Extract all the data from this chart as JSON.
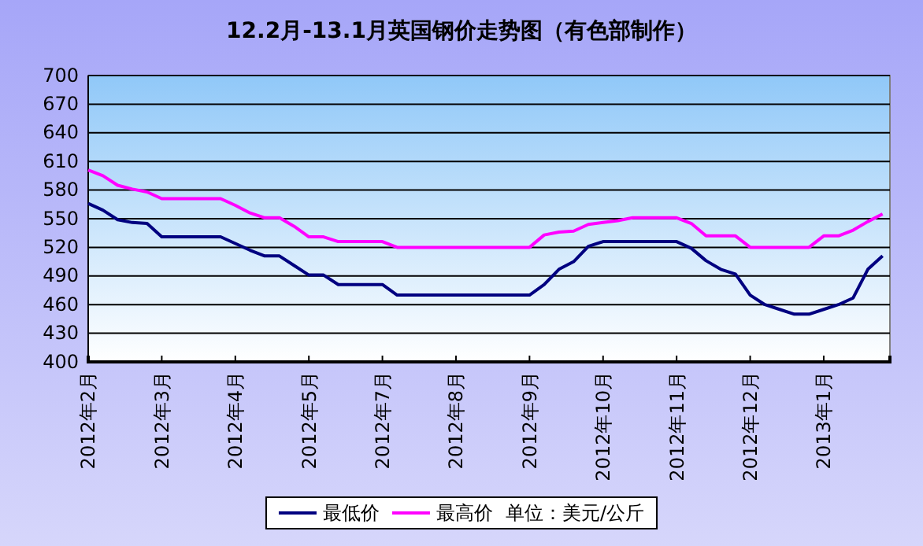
{
  "chart_data": {
    "type": "line",
    "title": "12.2月-13.1月英国钢价走势图（有色部制作）",
    "categories": [
      "2012年2月",
      null,
      null,
      null,
      null,
      "2012年3月",
      null,
      null,
      null,
      null,
      "2012年4月",
      null,
      null,
      null,
      null,
      "2012年5月",
      null,
      null,
      null,
      null,
      "2012年7月",
      null,
      null,
      null,
      null,
      "2012年8月",
      null,
      null,
      null,
      null,
      "2012年9月",
      null,
      null,
      null,
      null,
      "2012年10月",
      null,
      null,
      null,
      null,
      "2012年11月",
      null,
      null,
      null,
      null,
      "2012年12月",
      null,
      null,
      null,
      null,
      "2013年1月",
      null,
      null,
      null,
      null
    ],
    "ylim": [
      400,
      700
    ],
    "yticks": [
      400,
      430,
      460,
      490,
      520,
      550,
      580,
      610,
      640,
      670,
      700
    ],
    "grid": "y",
    "legend": "bottom",
    "marker": "none",
    "line_style": "solid",
    "annotations": [
      "单位：美元/公斤"
    ],
    "series": [
      {
        "name": "最低价",
        "color": "#000080",
        "values": [
          566,
          559,
          549,
          546,
          545,
          531,
          531,
          531,
          531,
          531,
          524,
          517,
          511,
          511,
          501,
          491,
          491,
          481,
          481,
          481,
          481,
          470,
          470,
          470,
          470,
          470,
          470,
          470,
          470,
          470,
          470,
          481,
          497,
          505,
          521,
          526,
          526,
          526,
          526,
          526,
          526,
          519,
          506,
          497,
          492,
          470,
          460,
          455,
          450,
          450,
          455,
          460,
          467,
          497,
          511
        ]
      },
      {
        "name": "最高价",
        "color": "#ff00ff",
        "values": [
          601,
          595,
          585,
          581,
          578,
          571,
          571,
          571,
          571,
          571,
          564,
          556,
          551,
          551,
          542,
          531,
          531,
          526,
          526,
          526,
          526,
          520,
          520,
          520,
          520,
          520,
          520,
          520,
          520,
          520,
          520,
          533,
          536,
          537,
          544,
          546,
          548,
          551,
          551,
          551,
          551,
          545,
          532,
          532,
          532,
          520,
          520,
          520,
          520,
          520,
          532,
          532,
          538,
          547,
          555
        ]
      }
    ]
  }
}
